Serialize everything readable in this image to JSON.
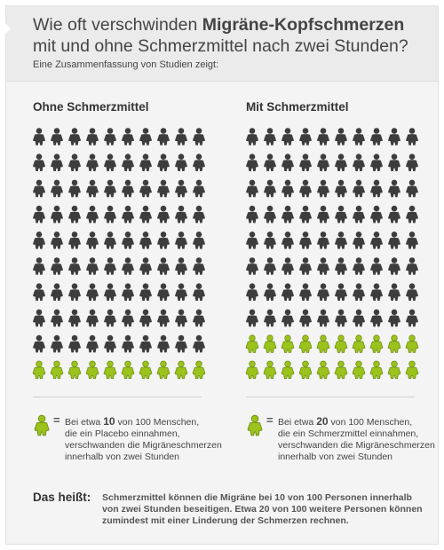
{
  "header": {
    "title_line1_pre": "Wie oft verschwinden ",
    "title_line1_bold": "Migräne-Kopfschmerzen",
    "title_line2": "mit und ohne Schmerzmittel nach zwei Stunden?",
    "intro": "Eine Zusammenfassung von Studien zeigt:"
  },
  "colors": {
    "dark_person": "#3d3d3d",
    "green_person": "#9bc31c",
    "green_outline": "#6f8f12"
  },
  "groups": [
    {
      "title": "Ohne Schmerzmittel",
      "total": 100,
      "green_count": 10,
      "legend_pre": "Bei etwa ",
      "legend_number": "10",
      "legend_post": " von 100 Menschen,",
      "legend_rest": "die ein Placebo einnahmen, verschwanden die Migräneschmerzen innerhalb von zwei Stunden"
    },
    {
      "title": "Mit Schmerzmittel",
      "total": 100,
      "green_count": 20,
      "legend_pre": "Bei etwa ",
      "legend_number": "20",
      "legend_post": " von 100 Menschen,",
      "legend_rest": "die ein Schmerzmittel einnahmen, verschwanden die Migräneschmerzen innerhalb von zwei Stunden"
    }
  ],
  "legend_equals": "=",
  "icons": {
    "person": "person-icon",
    "person_green": "person-green-icon"
  },
  "summary": {
    "label": "Das heißt:",
    "text": "Schmerzmittel können die Migräne bei 10 von 100 Personen innerhalb von zwei Stunden beseitigen. Etwa 20 von 100 weitere Personen können zumindest mit einer Linderung der Schmerzen rechnen."
  }
}
